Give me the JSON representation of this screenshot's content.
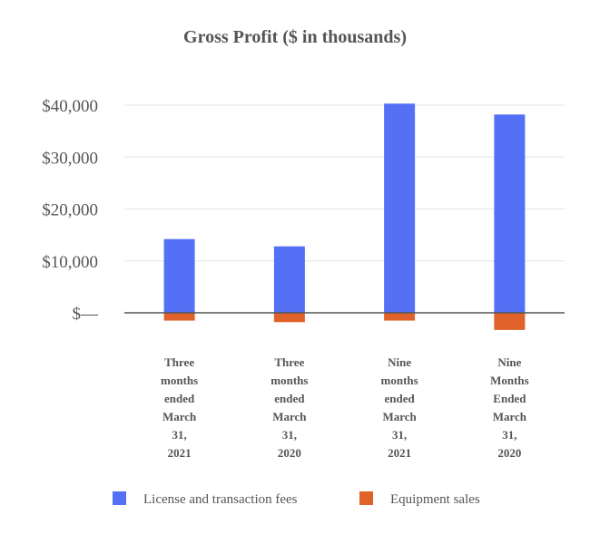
{
  "chart_data": {
    "type": "bar",
    "title": "Gross Profit ($ in thousands)",
    "xlabel": "",
    "ylabel": "",
    "ylim": [
      -5000,
      40000
    ],
    "yticks": [
      {
        "value": 0,
        "label": "$—"
      },
      {
        "value": 10000,
        "label": "$10,000"
      },
      {
        "value": 20000,
        "label": "$20,000"
      },
      {
        "value": 30000,
        "label": "$30,000"
      },
      {
        "value": 40000,
        "label": "$40,000"
      }
    ],
    "categories": [
      [
        "Three",
        "months",
        "ended",
        "March",
        "31,",
        "2021"
      ],
      [
        "Three",
        "months",
        "ended",
        "March",
        "31,",
        "2020"
      ],
      [
        "Nine",
        "months",
        "ended",
        "March",
        "31,",
        "2021"
      ],
      [
        "Nine",
        "Months",
        "Ended",
        "March",
        "31,",
        "2020"
      ]
    ],
    "series": [
      {
        "name": "License and transaction fees",
        "color": "#5470f5",
        "values": [
          14200,
          12800,
          40300,
          38200
        ]
      },
      {
        "name": "Equipment sales",
        "color": "#e0622a",
        "values": [
          -1500,
          -1800,
          -1500,
          -3300
        ]
      }
    ],
    "grid": true,
    "legend": "bottom"
  }
}
